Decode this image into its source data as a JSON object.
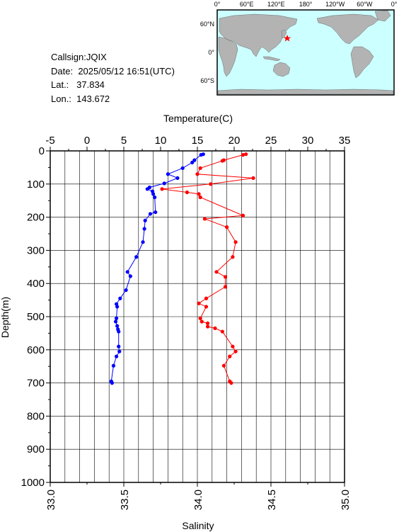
{
  "station": {
    "callsign_label": "Callsign:",
    "callsign": "JQIX",
    "date_label": "Date:",
    "date": "2025/05/12 16:51(UTC)",
    "lat_label": "Lat.:",
    "lat": "37.834",
    "lon_label": "Lon.:",
    "lon": "143.672"
  },
  "map": {
    "lon_ticks": [
      "0°",
      "60°E",
      "120°E",
      "180°",
      "120°W",
      "60°W",
      "0°"
    ],
    "lat_ticks": [
      "60°N",
      "0°",
      "60°S"
    ],
    "ocean_color": "#ccffff",
    "land_color": "#b3b3b3",
    "marker_color": "#ff0000",
    "marker_icon": "star-icon"
  },
  "chart_data": {
    "type": "scatter",
    "ylabel": "Depth(m)",
    "ylim": [
      0,
      1000
    ],
    "y_reversed": true,
    "y_ticks": [
      0,
      100,
      200,
      300,
      400,
      500,
      600,
      700,
      800,
      900,
      1000
    ],
    "top_axis": {
      "label": "Temperature(C)",
      "lim": [
        -5,
        35
      ],
      "ticks": [
        -5,
        0,
        5,
        10,
        15,
        20,
        25,
        30,
        35
      ]
    },
    "bottom_axis": {
      "label": "Salinity",
      "lim": [
        33.0,
        35.0
      ],
      "ticks": [
        "33.0",
        "33.5",
        "34.0",
        "34.5",
        "35.0"
      ]
    },
    "grid": true,
    "series": [
      {
        "quantity": "Temperature",
        "axis": "top",
        "color": "#0000ff",
        "depth": [
          10,
          12,
          28,
          35,
          52,
          70,
          82,
          98,
          110,
          115,
          122,
          130,
          140,
          185,
          190,
          210,
          235,
          275,
          320,
          365,
          378,
          420,
          445,
          462,
          470,
          505,
          515,
          528,
          538,
          545,
          590,
          605,
          620,
          648,
          695,
          700
        ],
        "value": [
          15.8,
          15.5,
          14.6,
          14.3,
          13.0,
          11.0,
          12.3,
          10.5,
          8.5,
          8.2,
          8.9,
          9.0,
          9.2,
          9.3,
          8.6,
          7.9,
          7.8,
          7.6,
          6.7,
          5.5,
          5.9,
          5.3,
          4.5,
          4.0,
          4.1,
          4.0,
          3.9,
          4.1,
          4.2,
          4.3,
          4.3,
          4.4,
          4.0,
          3.6,
          3.3,
          3.4
        ]
      },
      {
        "quantity": "Salinity",
        "axis": "bottom",
        "color": "#ff0000",
        "depth": [
          10,
          12,
          28,
          30,
          52,
          70,
          82,
          100,
          115,
          125,
          130,
          140,
          195,
          205,
          230,
          275,
          320,
          365,
          380,
          410,
          445,
          460,
          470,
          505,
          515,
          520,
          530,
          535,
          545,
          590,
          605,
          620,
          648,
          695,
          700
        ],
        "value": [
          34.33,
          34.31,
          34.18,
          34.17,
          34.02,
          34.0,
          34.38,
          34.09,
          33.76,
          33.93,
          34.01,
          34.02,
          34.31,
          34.05,
          34.2,
          34.26,
          34.24,
          34.13,
          34.19,
          34.19,
          34.06,
          34.01,
          34.06,
          34.02,
          34.03,
          34.07,
          34.07,
          34.12,
          34.17,
          34.24,
          34.26,
          34.22,
          34.18,
          34.22,
          34.23
        ]
      }
    ]
  }
}
